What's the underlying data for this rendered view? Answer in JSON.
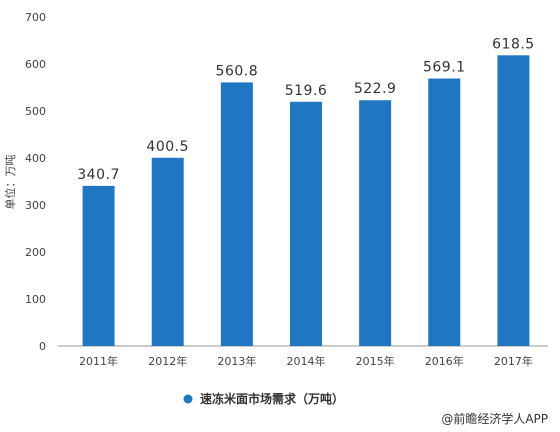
{
  "chart_data": {
    "type": "bar",
    "categories": [
      "2011年",
      "2012年",
      "2013年",
      "2014年",
      "2015年",
      "2016年",
      "2017年"
    ],
    "series": [
      {
        "name": "速冻米面市场需求（万吨）",
        "values": [
          340.7,
          400.5,
          560.8,
          519.6,
          522.9,
          569.1,
          618.5
        ],
        "data_labels": [
          "340.7",
          "400.5",
          "560.8",
          "519.6",
          "522.9",
          "569.1",
          "618.5"
        ],
        "color": "#1f77c4"
      }
    ],
    "ylabel": "单位：万吨",
    "ylim": [
      0,
      700
    ],
    "yticks": [
      0,
      100,
      200,
      300,
      400,
      500,
      600,
      700
    ],
    "grid": false,
    "legend": "bottom"
  },
  "watermark": {
    "text": "@前瞻经济学人APP"
  },
  "colors": {
    "bar": "#1f77c4",
    "axis": "#999999"
  }
}
